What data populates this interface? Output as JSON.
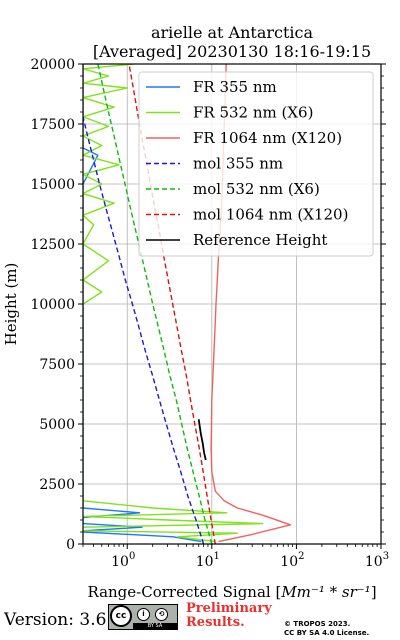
{
  "chart_data": {
    "type": "line",
    "title_line1": "arielle at Antarctica",
    "title_line2": "[Averaged] 20230130 18:16-19:15",
    "xlabel_text": "Range-Corrected Signal [",
    "xlabel_unit": "Mm⁻¹ * sr⁻¹",
    "xlabel_close": "]",
    "ylabel": "Height (m)",
    "xscale": "log",
    "xlim": [
      0.3,
      1000
    ],
    "ylim": [
      0,
      20000
    ],
    "grid": true,
    "legend_position": "top-right",
    "x_ticks": [
      {
        "value": 1,
        "label": "10⁰",
        "base": "10",
        "exp": "0"
      },
      {
        "value": 10,
        "label": "10¹",
        "base": "10",
        "exp": "1"
      },
      {
        "value": 100,
        "label": "10²",
        "base": "10",
        "exp": "2"
      },
      {
        "value": 1000,
        "label": "10³",
        "base": "10",
        "exp": "3"
      }
    ],
    "y_ticks": [
      0,
      2500,
      5000,
      7500,
      10000,
      12500,
      15000,
      17500,
      20000
    ],
    "series": [
      {
        "name": "FR 355 nm",
        "color": "#1f77ff",
        "dash": "solid",
        "points": [
          [
            7.5,
            100
          ],
          [
            3.5,
            300
          ],
          [
            0.3,
            500
          ],
          [
            0.3,
            550
          ],
          [
            1.5,
            700
          ],
          [
            0.3,
            850
          ],
          [
            0.3,
            1100
          ],
          [
            1.4,
            1300
          ],
          [
            0.3,
            1500
          ],
          [
            0.3,
            15000
          ],
          [
            0.45,
            16200
          ],
          [
            0.3,
            16500
          ],
          [
            0.3,
            20000
          ]
        ]
      },
      {
        "name": "FR 532 nm (X6)",
        "color": "#7fe31b",
        "dash": "solid",
        "points": [
          [
            11,
            100
          ],
          [
            4,
            300
          ],
          [
            20,
            450
          ],
          [
            0.3,
            550
          ],
          [
            0.3,
            700
          ],
          [
            40,
            850
          ],
          [
            3,
            1000
          ],
          [
            0.3,
            1150
          ],
          [
            15,
            1300
          ],
          [
            2,
            1500
          ],
          [
            0.3,
            1800
          ],
          [
            0.3,
            2000
          ],
          [
            0.3,
            10000
          ],
          [
            0.5,
            10500
          ],
          [
            0.3,
            11000
          ],
          [
            0.6,
            11800
          ],
          [
            0.3,
            12500
          ],
          [
            0.4,
            13300
          ],
          [
            0.3,
            13700
          ],
          [
            0.7,
            14200
          ],
          [
            0.3,
            14600
          ],
          [
            0.5,
            15000
          ],
          [
            0.3,
            15400
          ],
          [
            0.8,
            15800
          ],
          [
            0.3,
            16200
          ],
          [
            0.5,
            16600
          ],
          [
            0.3,
            17000
          ],
          [
            0.6,
            17400
          ],
          [
            0.3,
            17800
          ],
          [
            0.7,
            18200
          ],
          [
            0.3,
            18600
          ],
          [
            1.0,
            19000
          ],
          [
            0.3,
            19200
          ],
          [
            0.6,
            19500
          ],
          [
            0.3,
            19800
          ],
          [
            1.2,
            20000
          ]
        ]
      },
      {
        "name": "FR 1064 nm (X120)",
        "color": "#f26161",
        "dash": "solid",
        "points": [
          [
            12,
            100
          ],
          [
            30,
            400
          ],
          [
            85,
            800
          ],
          [
            40,
            1200
          ],
          [
            20,
            1500
          ],
          [
            14,
            1800
          ],
          [
            11,
            2200
          ],
          [
            10,
            3000
          ],
          [
            9.8,
            4000
          ],
          [
            9.9,
            5000
          ],
          [
            10,
            6000
          ],
          [
            10.3,
            7000
          ],
          [
            10.6,
            8000
          ],
          [
            10.9,
            9000
          ],
          [
            11.2,
            10000
          ],
          [
            11.6,
            11000
          ],
          [
            12,
            12000
          ],
          [
            12.5,
            13000
          ],
          [
            13,
            14000
          ],
          [
            13.3,
            15000
          ],
          [
            13.6,
            16000
          ],
          [
            13.9,
            17000
          ],
          [
            14.2,
            18000
          ],
          [
            14.5,
            19000
          ],
          [
            14.8,
            20000
          ]
        ]
      },
      {
        "name": "mol 355 nm",
        "color": "#1a1ad6",
        "dash": "dashed",
        "points": [
          [
            8,
            0
          ],
          [
            6.5,
            1000
          ],
          [
            5.2,
            2000
          ],
          [
            4.3,
            3000
          ],
          [
            3.5,
            4000
          ],
          [
            2.9,
            5000
          ],
          [
            2.4,
            6000
          ],
          [
            2.0,
            7000
          ],
          [
            1.65,
            8000
          ],
          [
            1.38,
            9000
          ],
          [
            1.15,
            10000
          ],
          [
            0.95,
            11000
          ],
          [
            0.8,
            12000
          ],
          [
            0.67,
            13000
          ],
          [
            0.56,
            14000
          ],
          [
            0.47,
            15000
          ],
          [
            0.4,
            16000
          ],
          [
            0.34,
            17000
          ],
          [
            0.3,
            17800
          ]
        ]
      },
      {
        "name": "mol 532 nm (X6)",
        "color": "#11b811",
        "dash": "dashed",
        "points": [
          [
            10,
            0
          ],
          [
            8.3,
            1000
          ],
          [
            7.1,
            2000
          ],
          [
            6.0,
            3000
          ],
          [
            5.1,
            4000
          ],
          [
            4.4,
            5000
          ],
          [
            3.8,
            6000
          ],
          [
            3.2,
            7000
          ],
          [
            2.75,
            8000
          ],
          [
            2.35,
            9000
          ],
          [
            2.0,
            10000
          ],
          [
            1.72,
            11000
          ],
          [
            1.48,
            12000
          ],
          [
            1.27,
            13000
          ],
          [
            1.09,
            14000
          ],
          [
            0.94,
            15000
          ],
          [
            0.81,
            16000
          ],
          [
            0.7,
            17000
          ],
          [
            0.6,
            18000
          ],
          [
            0.52,
            19000
          ],
          [
            0.45,
            20000
          ]
        ]
      },
      {
        "name": "mol 1064 nm (X120)",
        "color": "#dd1111",
        "dash": "dashed",
        "points": [
          [
            11,
            0
          ],
          [
            9.8,
            1000
          ],
          [
            8.8,
            2000
          ],
          [
            7.9,
            3000
          ],
          [
            7.1,
            4000
          ],
          [
            6.3,
            5000
          ],
          [
            5.6,
            6000
          ],
          [
            5.0,
            7000
          ],
          [
            4.4,
            8000
          ],
          [
            3.9,
            9000
          ],
          [
            3.45,
            10000
          ],
          [
            3.05,
            11000
          ],
          [
            2.7,
            12000
          ],
          [
            2.4,
            13000
          ],
          [
            2.12,
            14000
          ],
          [
            1.88,
            15000
          ],
          [
            1.67,
            16000
          ],
          [
            1.48,
            17000
          ],
          [
            1.32,
            18000
          ],
          [
            1.18,
            19000
          ],
          [
            1.05,
            20000
          ]
        ]
      },
      {
        "name": "Reference Height",
        "color": "#000000",
        "dash": "solid",
        "points": [
          [
            7,
            5200
          ],
          [
            7.4,
            4600
          ],
          [
            7.8,
            4200
          ],
          [
            8.1,
            3800
          ],
          [
            8.5,
            3500
          ]
        ]
      }
    ]
  },
  "footer": {
    "version": "Version: 3.6",
    "license_badge": "cc",
    "license_strip": "BY   SA",
    "preliminary_line1": "Preliminary",
    "preliminary_line2": "Results.",
    "copyright_line1": "© TROPOS 2023.",
    "copyright_line2": "CC BY SA 4.0 License."
  }
}
